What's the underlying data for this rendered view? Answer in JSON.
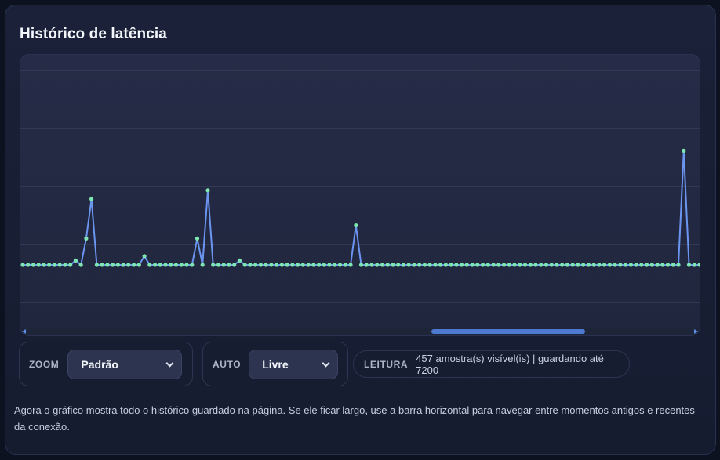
{
  "panel": {
    "title": "Histórico de latência"
  },
  "chart_data": {
    "type": "line",
    "title": "",
    "xlabel": "",
    "ylabel": "",
    "grid": true,
    "colors": {
      "line": "#6b95f0",
      "point": "#7ee6b0"
    },
    "series": [
      {
        "values": [
          0,
          0,
          0,
          0,
          0,
          0,
          0,
          0,
          0,
          0,
          0.1,
          0,
          0.6,
          1.5,
          0,
          0,
          0,
          0,
          0,
          0,
          0,
          0,
          0,
          0.2,
          0,
          0,
          0,
          0,
          0,
          0,
          0,
          0,
          0,
          0.6,
          0,
          1.7,
          0,
          0,
          0,
          0,
          0,
          0.1,
          0,
          0,
          0,
          0,
          0,
          0,
          0,
          0,
          0,
          0,
          0,
          0,
          0,
          0,
          0,
          0,
          0,
          0,
          0,
          0,
          0,
          0.9,
          0,
          0,
          0,
          0,
          0,
          0,
          0,
          0,
          0,
          0,
          0,
          0,
          0,
          0,
          0,
          0,
          0,
          0,
          0,
          0,
          0,
          0,
          0,
          0,
          0,
          0,
          0,
          0,
          0,
          0,
          0,
          0,
          0,
          0,
          0,
          0,
          0,
          0,
          0,
          0,
          0,
          0,
          0,
          0,
          0,
          0,
          0,
          0,
          0,
          0,
          0,
          0,
          0,
          0,
          0,
          0,
          0,
          0,
          0,
          0,
          0,
          2.6,
          0,
          0,
          0
        ]
      }
    ]
  },
  "controls": {
    "zoom_label": "ZOOM",
    "zoom_value": "Padrão",
    "auto_label": "AUTO",
    "auto_value": "Livre",
    "reading_label": "LEITURA",
    "reading_text": "457 amostra(s) visível(is) | guardando até 7200"
  },
  "help_text": "Agora o gráfico mostra todo o histórico guardado na página. Se ele ficar largo, use a barra horizontal para navegar entre momentos antigos e recentes da conexão."
}
